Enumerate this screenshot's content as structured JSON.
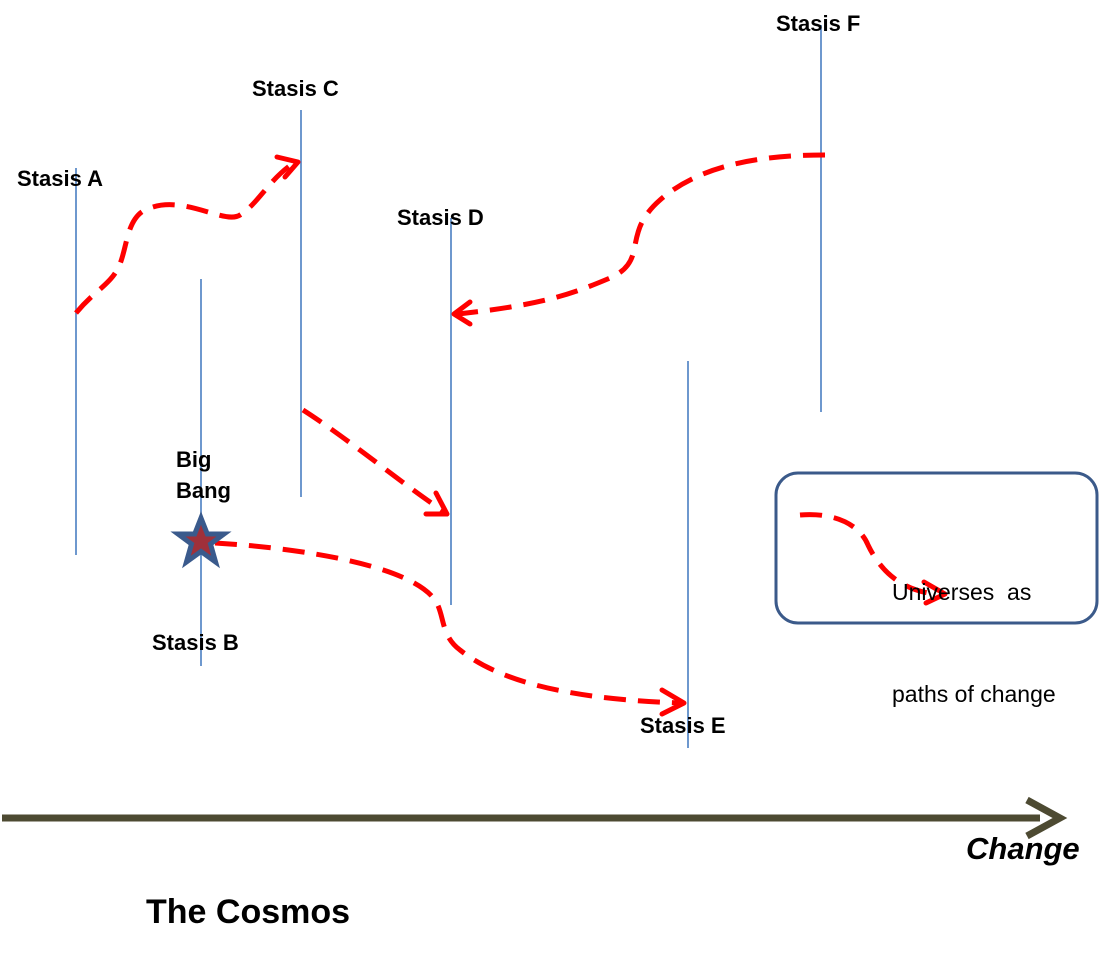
{
  "stases": [
    {
      "id": "a",
      "label": "Stasis A"
    },
    {
      "id": "b",
      "label": "Stasis B"
    },
    {
      "id": "c",
      "label": "Stasis C"
    },
    {
      "id": "d",
      "label": "Stasis D"
    },
    {
      "id": "e",
      "label": "Stasis E"
    },
    {
      "id": "f",
      "label": "Stasis F"
    }
  ],
  "origin": {
    "line1": "Big",
    "line2": "Bang"
  },
  "legend": {
    "line1": "Universes  as",
    "line2": "paths of change"
  },
  "axis": {
    "label": "Change"
  },
  "title": "The Cosmos",
  "colors": {
    "path": "#ff0000",
    "stasis_line": "#4a7fc1",
    "axis": "#4d4a32",
    "star_fill": "#a0303a",
    "star_stroke": "#3a5a8c",
    "legend_border": "#3b5a8a"
  },
  "icons": {
    "origin": "star-icon"
  }
}
